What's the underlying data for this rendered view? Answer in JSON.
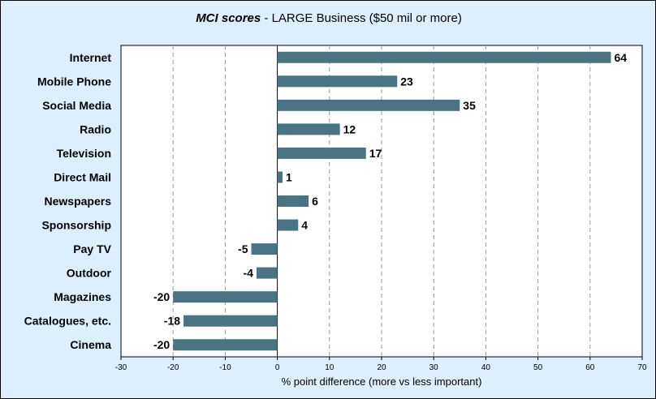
{
  "chart_data": {
    "type": "bar",
    "orientation": "horizontal",
    "title_italic": "MCI scores",
    "title_rest": " - LARGE Business ($50 mil or more)",
    "categories": [
      "Internet",
      "Mobile Phone",
      "Social Media",
      "Radio",
      "Television",
      "Direct Mail",
      "Newspapers",
      "Sponsorship",
      "Pay TV",
      "Outdoor",
      "Magazines",
      "Catalogues, etc.",
      "Cinema"
    ],
    "values": [
      64,
      23,
      35,
      12,
      17,
      1,
      6,
      4,
      -5,
      -4,
      -20,
      -18,
      -20
    ],
    "data_labels": [
      "64",
      "23",
      "35",
      "12",
      "17",
      "1",
      "6",
      "4",
      "-5",
      "-4",
      "-20",
      "-18",
      "-20"
    ],
    "xlabel": "% point difference (more vs less important)",
    "ylabel": "",
    "xlim": [
      -30,
      70
    ],
    "xticks": [
      "-30",
      "-20",
      "-10",
      "0",
      "10",
      "20",
      "30",
      "40",
      "50",
      "60",
      "70"
    ],
    "grid": "vertical dashed",
    "legend": "none",
    "colors": {
      "bar": "#4a7484",
      "plot_background": "#ffffff",
      "outer_background": "#ddeeff",
      "gridline": "#999999"
    }
  }
}
